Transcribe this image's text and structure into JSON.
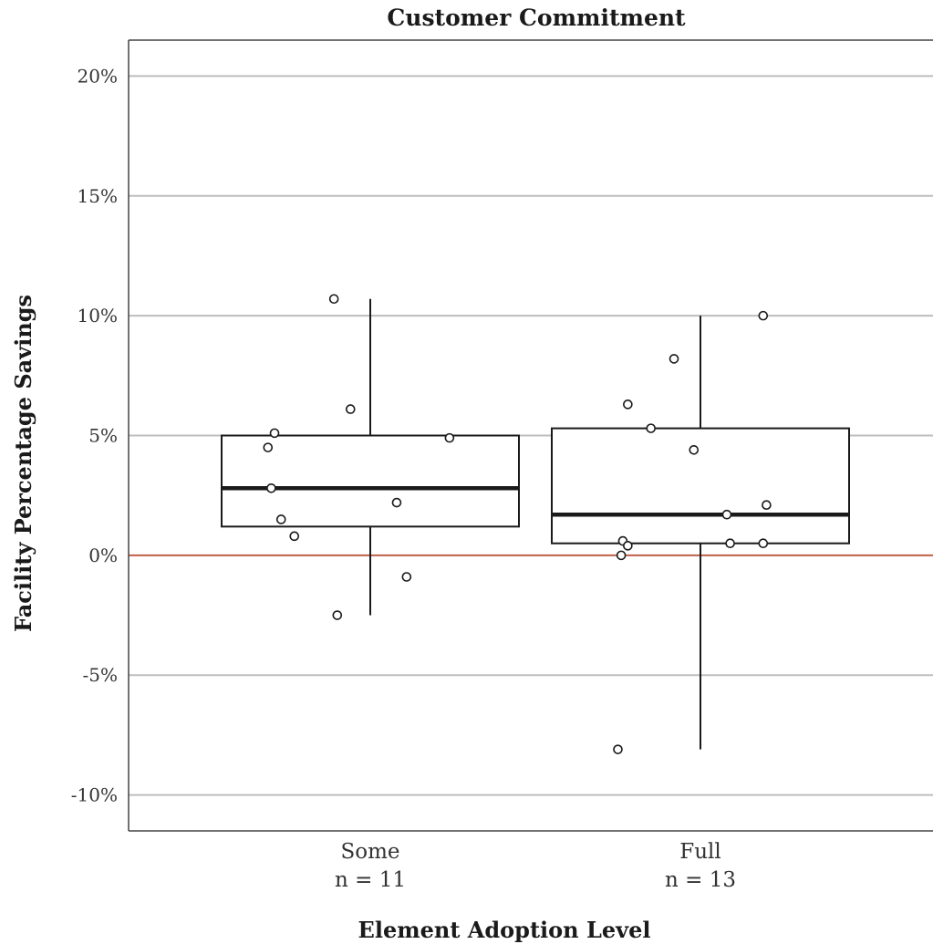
{
  "chart_data": {
    "type": "box",
    "title": "Customer Commitment",
    "xlabel": "Element Adoption Level",
    "ylabel": "Facility Percentage Savings",
    "ylim": [
      -11.5,
      21.5
    ],
    "yticks": [
      -10,
      -5,
      0,
      5,
      10,
      15,
      20
    ],
    "ytick_labels": [
      "-10%",
      "-5%",
      "0%",
      "5%",
      "10%",
      "15%",
      "20%"
    ],
    "grid": true,
    "reference_line": {
      "y": 0,
      "color": "#c0604a"
    },
    "groups": [
      {
        "label": "Some",
        "n_label": "n = 11",
        "whisker_low": -2.5,
        "q1": 1.2,
        "median": 2.8,
        "q3": 5.0,
        "whisker_high": 10.7,
        "points": [
          {
            "jitter": -0.62,
            "y": 4.5
          },
          {
            "jitter": -0.58,
            "y": 5.1
          },
          {
            "jitter": -0.6,
            "y": 2.8
          },
          {
            "jitter": -0.54,
            "y": 1.5
          },
          {
            "jitter": -0.46,
            "y": 0.8
          },
          {
            "jitter": -0.22,
            "y": 10.7
          },
          {
            "jitter": -0.2,
            "y": -2.5
          },
          {
            "jitter": -0.12,
            "y": 6.1
          },
          {
            "jitter": 0.16,
            "y": 2.2
          },
          {
            "jitter": 0.22,
            "y": -0.9
          },
          {
            "jitter": 0.48,
            "y": 4.9
          }
        ]
      },
      {
        "label": "Full",
        "n_label": "n = 13",
        "whisker_low": -8.1,
        "q1": 0.5,
        "median": 1.7,
        "q3": 5.3,
        "whisker_high": 10.0,
        "points": [
          {
            "jitter": -0.5,
            "y": -8.1
          },
          {
            "jitter": -0.48,
            "y": 0.0
          },
          {
            "jitter": -0.47,
            "y": 0.6
          },
          {
            "jitter": -0.44,
            "y": 0.4
          },
          {
            "jitter": -0.44,
            "y": 6.3
          },
          {
            "jitter": -0.3,
            "y": 5.3
          },
          {
            "jitter": -0.16,
            "y": 8.2
          },
          {
            "jitter": -0.04,
            "y": 4.4
          },
          {
            "jitter": 0.16,
            "y": 1.7
          },
          {
            "jitter": 0.18,
            "y": 0.5
          },
          {
            "jitter": 0.38,
            "y": 0.5
          },
          {
            "jitter": 0.38,
            "y": 10.0
          },
          {
            "jitter": 0.4,
            "y": 2.1
          }
        ]
      }
    ]
  }
}
